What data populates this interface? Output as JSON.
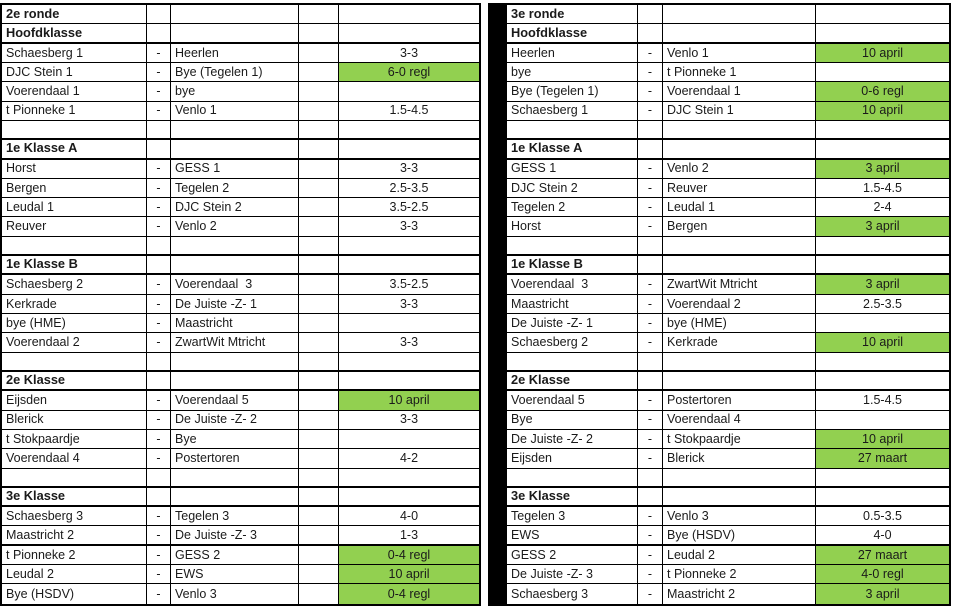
{
  "separator": "-",
  "colors": {
    "highlight_green": "#92d050",
    "grid_line": "#000000",
    "divider_fill": "#000000",
    "background": "#ffffff"
  },
  "halves": [
    {
      "round_label": "2e ronde",
      "sections": [
        {
          "title": "Hoofdklasse",
          "matches": [
            {
              "home": "Schaesberg 1",
              "away": "Heerlen",
              "result": "3-3",
              "highlight": false
            },
            {
              "home": "DJC Stein 1",
              "away": "Bye (Tegelen 1)",
              "result": "6-0 regl",
              "highlight": true
            },
            {
              "home": "Voerendaal 1",
              "away": "bye",
              "result": "",
              "highlight": false
            },
            {
              "home": "t Pionneke 1",
              "away": "Venlo 1",
              "result": "1.5-4.5",
              "highlight": false
            }
          ]
        },
        {
          "title": "1e Klasse A",
          "matches": [
            {
              "home": "Horst",
              "away": "GESS 1",
              "result": "3-3",
              "highlight": false
            },
            {
              "home": "Bergen",
              "away": "Tegelen 2",
              "result": "2.5-3.5",
              "highlight": false
            },
            {
              "home": "Leudal 1",
              "away": "DJC Stein 2",
              "result": "3.5-2.5",
              "highlight": false
            },
            {
              "home": "Reuver",
              "away": "Venlo 2",
              "result": "3-3",
              "highlight": false
            }
          ]
        },
        {
          "title": "1e Klasse B",
          "matches": [
            {
              "home": "Schaesberg 2",
              "away": "Voerendaal  3",
              "result": "3.5-2.5",
              "highlight": false
            },
            {
              "home": "Kerkrade",
              "away": "De Juiste -Z- 1",
              "result": "3-3",
              "highlight": false
            },
            {
              "home": "bye (HME)",
              "away": "Maastricht",
              "result": "",
              "highlight": false
            },
            {
              "home": "Voerendaal 2",
              "away": "ZwartWit Mtricht",
              "result": "3-3",
              "highlight": false
            }
          ]
        },
        {
          "title": "2e Klasse",
          "matches": [
            {
              "home": "Eijsden",
              "away": "Voerendaal 5",
              "result": "10 april",
              "highlight": true
            },
            {
              "home": "Blerick",
              "away": "De Juiste -Z- 2",
              "result": "3-3",
              "highlight": false
            },
            {
              "home": "t Stokpaardje",
              "away": "Bye",
              "result": "",
              "highlight": false
            },
            {
              "home": "Voerendaal 4",
              "away": "Postertoren",
              "result": "4-2",
              "highlight": false
            }
          ]
        },
        {
          "title": "3e Klasse",
          "matches": [
            {
              "home": "Schaesberg 3",
              "away": "Tegelen 3",
              "result": "4-0",
              "highlight": false
            },
            {
              "home": "Maastricht 2",
              "away": "De Juiste -Z- 3",
              "result": "1-3",
              "highlight": false
            },
            {
              "home": "t Pionneke 2",
              "away": "GESS 2",
              "result": "0-4 regl",
              "highlight": true
            },
            {
              "home": "Leudal 2",
              "away": "EWS",
              "result": "10 april",
              "highlight": true
            },
            {
              "home": "Bye (HSDV)",
              "away": "Venlo 3",
              "result": "0-4 regl",
              "highlight": true
            }
          ]
        }
      ]
    },
    {
      "round_label": "3e ronde",
      "sections": [
        {
          "title": "Hoofdklasse",
          "matches": [
            {
              "home": "Heerlen",
              "away": "Venlo 1",
              "result": "10 april",
              "highlight": true
            },
            {
              "home": "bye",
              "away": "t Pionneke 1",
              "result": "",
              "highlight": false
            },
            {
              "home": "Bye (Tegelen 1)",
              "away": "Voerendaal 1",
              "result": "0-6 regl",
              "highlight": true
            },
            {
              "home": "Schaesberg 1",
              "away": "DJC Stein 1",
              "result": "10 april",
              "highlight": true
            }
          ]
        },
        {
          "title": "1e Klasse A",
          "matches": [
            {
              "home": "GESS 1",
              "away": "Venlo 2",
              "result": "3 april",
              "highlight": true
            },
            {
              "home": "DJC Stein 2",
              "away": "Reuver",
              "result": "1.5-4.5",
              "highlight": false
            },
            {
              "home": "Tegelen 2",
              "away": "Leudal 1",
              "result": "2-4",
              "highlight": false
            },
            {
              "home": "Horst",
              "away": "Bergen",
              "result": "3 april",
              "highlight": true
            }
          ]
        },
        {
          "title": "1e Klasse B",
          "matches": [
            {
              "home": "Voerendaal  3",
              "away": "ZwartWit Mtricht",
              "result": "3 april",
              "highlight": true
            },
            {
              "home": "Maastricht",
              "away": "Voerendaal 2",
              "result": "2.5-3.5",
              "highlight": false
            },
            {
              "home": "De Juiste -Z- 1",
              "away": "bye (HME)",
              "result": "",
              "highlight": false
            },
            {
              "home": "Schaesberg 2",
              "away": "Kerkrade",
              "result": "10 april",
              "highlight": true
            }
          ]
        },
        {
          "title": "2e Klasse",
          "matches": [
            {
              "home": "Voerendaal 5",
              "away": "Postertoren",
              "result": "1.5-4.5",
              "highlight": false
            },
            {
              "home": "Bye",
              "away": "Voerendaal 4",
              "result": "",
              "highlight": false
            },
            {
              "home": "De Juiste -Z- 2",
              "away": "t Stokpaardje",
              "result": "10 april",
              "highlight": true
            },
            {
              "home": "Eijsden",
              "away": "Blerick",
              "result": "27 maart",
              "highlight": true
            }
          ]
        },
        {
          "title": "3e Klasse",
          "matches": [
            {
              "home": "Tegelen 3",
              "away": "Venlo 3",
              "result": "0.5-3.5",
              "highlight": false
            },
            {
              "home": "EWS",
              "away": "Bye (HSDV)",
              "result": "4-0",
              "highlight": false
            },
            {
              "home": "GESS 2",
              "away": "Leudal 2",
              "result": "27 maart",
              "highlight": true
            },
            {
              "home": "De Juiste -Z- 3",
              "away": "t Pionneke 2",
              "result": "4-0 regl",
              "highlight": true
            },
            {
              "home": "Schaesberg 3",
              "away": "Maastricht 2",
              "result": "3 april",
              "highlight": true
            }
          ]
        }
      ]
    }
  ]
}
